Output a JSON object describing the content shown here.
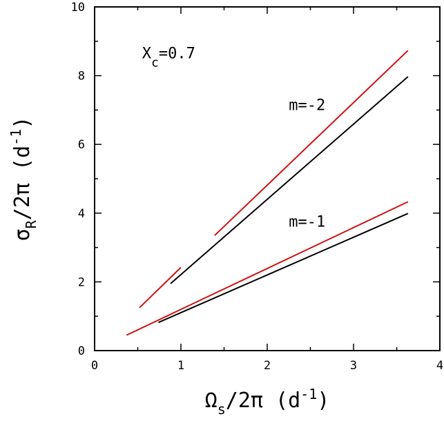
{
  "chart_data": {
    "type": "line",
    "xlabel": {
      "main": "Ω",
      "sub": "s",
      "rest": "/2π (d",
      "sup": "-1",
      "close": ")"
    },
    "ylabel": {
      "main": "σ",
      "sub": "R",
      "rest": "/2π (d",
      "sup": "-1",
      "close": ")"
    },
    "xlim": [
      0,
      4
    ],
    "ylim": [
      0,
      10
    ],
    "xticks": [
      "0",
      "1",
      "2",
      "3",
      "4"
    ],
    "yticks": [
      "0",
      "2",
      "4",
      "6",
      "8",
      "10"
    ],
    "grid": false,
    "colors": {
      "red": "#d01010",
      "black": "#000000"
    },
    "annotations": [
      {
        "id": "xc",
        "main": "X",
        "sub": "c",
        "rest": "=0.7",
        "x": 0.55,
        "y": 8.5
      },
      {
        "id": "m2",
        "text": "m=-2",
        "x": 2.25,
        "y": 7.0
      },
      {
        "id": "m1",
        "text": "m=-1",
        "x": 2.25,
        "y": 3.6
      }
    ],
    "series": [
      {
        "color": "red",
        "x": [
          0.37,
          3.63
        ],
        "y": [
          0.45,
          4.33
        ]
      },
      {
        "color": "black",
        "x": [
          0.74,
          3.63
        ],
        "y": [
          0.82,
          3.99
        ]
      },
      {
        "color": "red",
        "x": [
          0.52,
          1.0
        ],
        "y": [
          1.25,
          2.42
        ]
      },
      {
        "color": "red",
        "x": [
          1.39,
          3.63
        ],
        "y": [
          3.35,
          8.73
        ]
      },
      {
        "color": "black",
        "x": [
          0.88,
          3.63
        ],
        "y": [
          1.95,
          7.97
        ]
      }
    ]
  }
}
